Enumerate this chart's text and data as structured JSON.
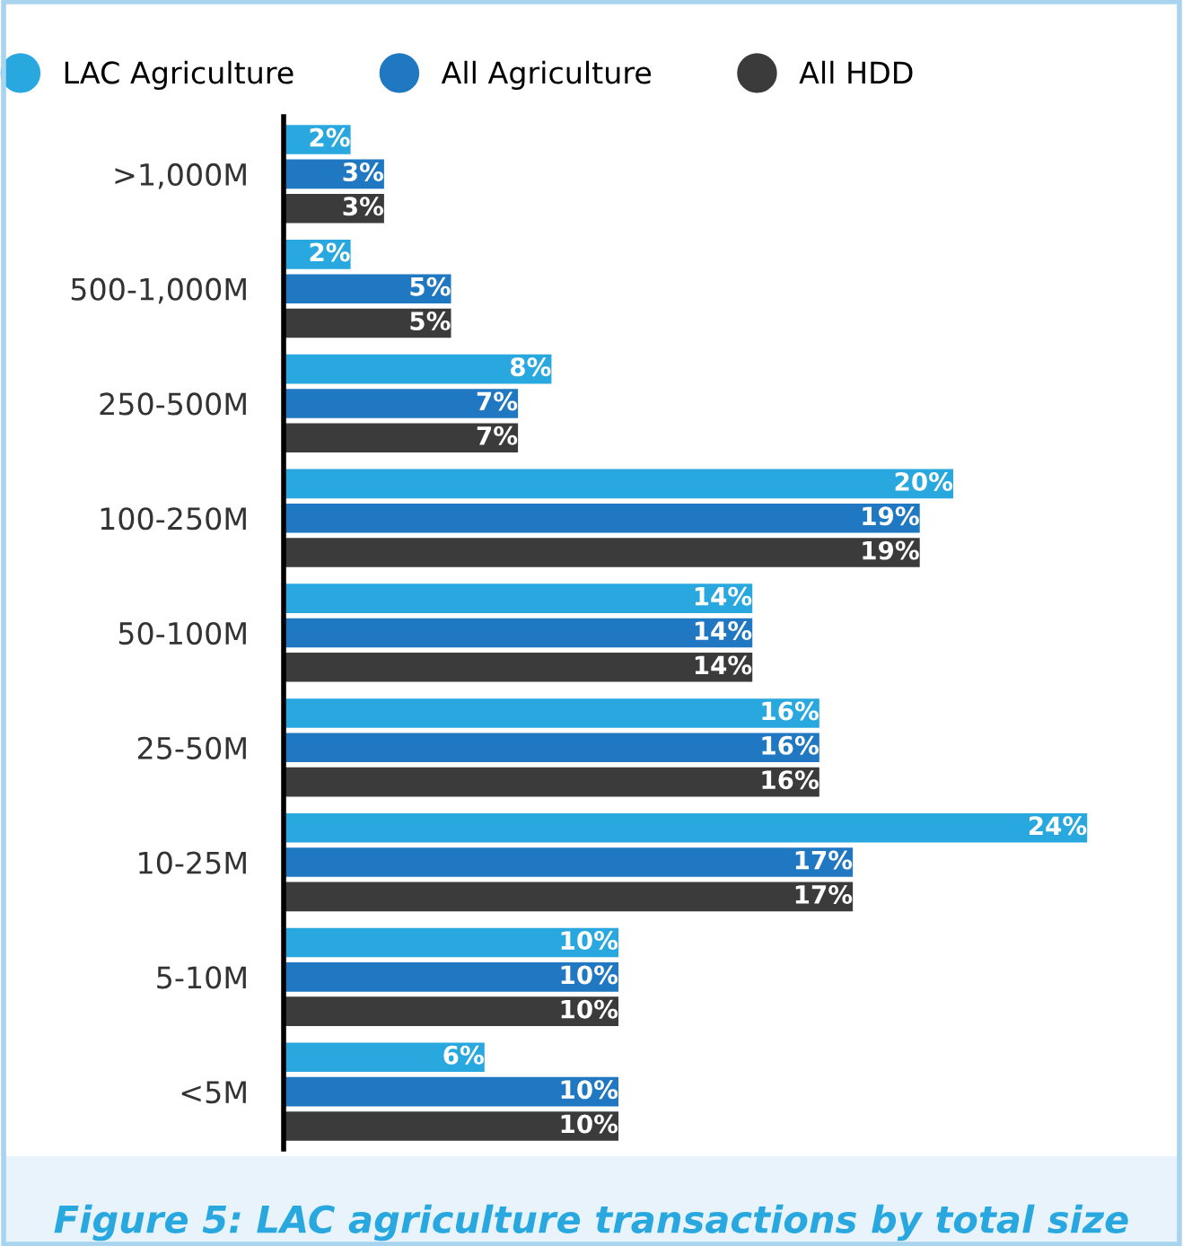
{
  "chart_data": {
    "type": "bar",
    "orientation": "horizontal",
    "legend": "top",
    "annotations": [
      "Figure 5: LAC agriculture transactions by total size"
    ],
    "categories": [
      ">1,000M",
      "500-1,000M",
      "250-500M",
      "100-250M",
      "50-100M",
      "25-50M",
      "10-25M",
      "5-10M",
      "<5M"
    ],
    "series": [
      {
        "name": "LAC Agriculture",
        "color": "#29a8e0",
        "values": [
          2,
          2,
          8,
          20,
          14,
          16,
          24,
          10,
          6
        ],
        "value_labels": [
          "2%",
          "2%",
          "8%",
          "20%",
          "14%",
          "16%",
          "24%",
          "10%",
          "6%"
        ]
      },
      {
        "name": "All Agriculture",
        "color": "#1f78c1",
        "values": [
          3,
          5,
          7,
          19,
          14,
          16,
          17,
          10,
          10
        ],
        "value_labels": [
          "3%",
          "5%",
          "7%",
          "19%",
          "14%",
          "16%",
          "17%",
          "10%",
          "10%"
        ]
      },
      {
        "name": "All HDD",
        "color": "#3b3b3b",
        "values": [
          3,
          5,
          7,
          19,
          14,
          16,
          17,
          10,
          10
        ],
        "value_labels": [
          "3%",
          "5%",
          "7%",
          "19%",
          "14%",
          "16%",
          "17%",
          "10%",
          "10%"
        ]
      }
    ]
  }
}
